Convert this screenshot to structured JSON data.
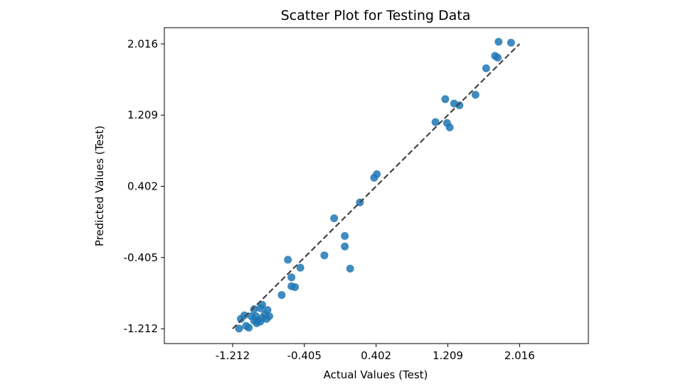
{
  "chart_data": {
    "type": "scatter",
    "title": "Scatter Plot for Testing Data",
    "xlabel": "Actual Values (Test)",
    "ylabel": "Predicted Values (Test)",
    "xlim": [
      -1.98,
      2.79
    ],
    "ylim": [
      -1.38,
      2.2
    ],
    "xticks": [
      -1.212,
      -0.405,
      0.402,
      1.209,
      2.016
    ],
    "yticks": [
      -1.212,
      -0.405,
      0.402,
      1.209,
      2.016
    ],
    "xtick_labels": [
      "-1.212",
      "-0.405",
      "0.402",
      "1.209",
      "2.016"
    ],
    "ytick_labels": [
      "-1.212",
      "-0.405",
      "0.402",
      "1.209",
      "2.016"
    ],
    "grid": false,
    "reference_line": {
      "style": "dashed",
      "from": [
        -1.212,
        -1.212
      ],
      "to": [
        2.016,
        2.016
      ],
      "color": "#444444"
    },
    "point_color": "#1f77b4",
    "points": [
      [
        1.92,
        2.03
      ],
      [
        1.78,
        2.04
      ],
      [
        1.77,
        1.86
      ],
      [
        1.74,
        1.88
      ],
      [
        1.64,
        1.74
      ],
      [
        1.52,
        1.44
      ],
      [
        1.18,
        1.39
      ],
      [
        1.28,
        1.34
      ],
      [
        1.34,
        1.32
      ],
      [
        1.07,
        1.13
      ],
      [
        1.2,
        1.12
      ],
      [
        1.23,
        1.07
      ],
      [
        0.41,
        0.54
      ],
      [
        0.38,
        0.5
      ],
      [
        0.22,
        0.22
      ],
      [
        0.05,
        -0.16
      ],
      [
        0.05,
        -0.28
      ],
      [
        0.11,
        -0.53
      ],
      [
        -0.07,
        0.04
      ],
      [
        -0.18,
        -0.38
      ],
      [
        -0.59,
        -0.43
      ],
      [
        -0.45,
        -0.52
      ],
      [
        -0.55,
        -0.63
      ],
      [
        -0.51,
        -0.74
      ],
      [
        -0.55,
        -0.73
      ],
      [
        -0.66,
        -0.83
      ],
      [
        -0.82,
        -1.0
      ],
      [
        -0.8,
        -1.07
      ],
      [
        -0.83,
        -1.1
      ],
      [
        -0.85,
        -1.05
      ],
      [
        -0.88,
        -0.94
      ],
      [
        -0.88,
        -1.09
      ],
      [
        -0.9,
        -0.98
      ],
      [
        -0.93,
        -1.12
      ],
      [
        -0.95,
        -1.07
      ],
      [
        -0.97,
        -0.99
      ],
      [
        -0.97,
        -1.12
      ],
      [
        -1.0,
        -1.07
      ],
      [
        -1.03,
        -1.2
      ],
      [
        -1.06,
        -1.18
      ],
      [
        -1.08,
        -1.06
      ],
      [
        -1.12,
        -1.1
      ],
      [
        -1.14,
        -1.21
      ],
      [
        -0.94,
        -1.15
      ],
      [
        -0.9,
        -1.13
      ]
    ]
  }
}
